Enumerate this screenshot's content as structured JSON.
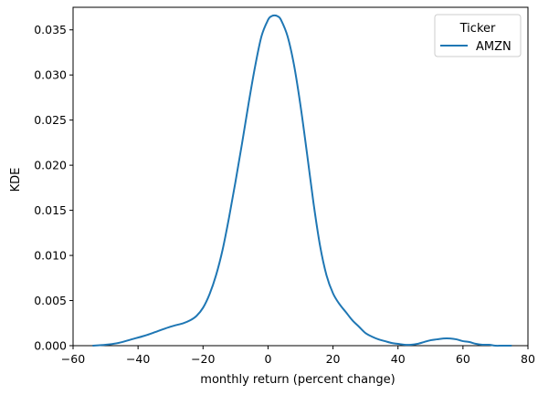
{
  "chart_data": {
    "type": "line",
    "xlabel": "monthly return (percent change)",
    "ylabel": "KDE",
    "xlim": [
      -60,
      80
    ],
    "ylim": [
      0,
      0.0375
    ],
    "xticks": [
      "−60",
      "−40",
      "−20",
      "0",
      "20",
      "40",
      "60",
      "80"
    ],
    "xtick_values": [
      -60,
      -40,
      -20,
      0,
      20,
      40,
      60,
      80
    ],
    "yticks": [
      "0.000",
      "0.005",
      "0.010",
      "0.015",
      "0.020",
      "0.025",
      "0.030",
      "0.035"
    ],
    "ytick_values": [
      0,
      0.005,
      0.01,
      0.015,
      0.02,
      0.025,
      0.03,
      0.035
    ],
    "grid": false,
    "legend": {
      "title": "Ticker",
      "placement": "top-right"
    },
    "series": [
      {
        "name": "AMZN",
        "color": "#1f77b4",
        "x": [
          -54,
          -50,
          -46,
          -42,
          -38,
          -34,
          -30,
          -26,
          -24,
          -22,
          -20,
          -18,
          -16,
          -14,
          -12,
          -10,
          -8,
          -6,
          -4,
          -2,
          0,
          1,
          2,
          3,
          4,
          6,
          8,
          10,
          12,
          14,
          16,
          18,
          20,
          22,
          24,
          26,
          28,
          30,
          32,
          34,
          36,
          38,
          40,
          42,
          44,
          46,
          48,
          50,
          52,
          54,
          56,
          58,
          60,
          62,
          64,
          66,
          68,
          70,
          72,
          75
        ],
        "y": [
          0.0,
          0.0001,
          0.0003,
          0.0007,
          0.0011,
          0.0016,
          0.0021,
          0.0025,
          0.0028,
          0.0033,
          0.0042,
          0.0057,
          0.0078,
          0.0106,
          0.0142,
          0.0182,
          0.0224,
          0.0268,
          0.0309,
          0.0343,
          0.0361,
          0.0365,
          0.0366,
          0.0365,
          0.0361,
          0.0343,
          0.0311,
          0.0266,
          0.0213,
          0.0158,
          0.0111,
          0.0078,
          0.0058,
          0.0046,
          0.0037,
          0.0028,
          0.0021,
          0.0014,
          0.001,
          0.0007,
          0.0005,
          0.0003,
          0.0002,
          0.0001,
          0.0001,
          0.0002,
          0.0004,
          0.0006,
          0.0007,
          0.0008,
          0.0008,
          0.0007,
          0.0005,
          0.0004,
          0.0002,
          0.0001,
          0.0001,
          0.0,
          0.0,
          0.0
        ]
      }
    ]
  }
}
